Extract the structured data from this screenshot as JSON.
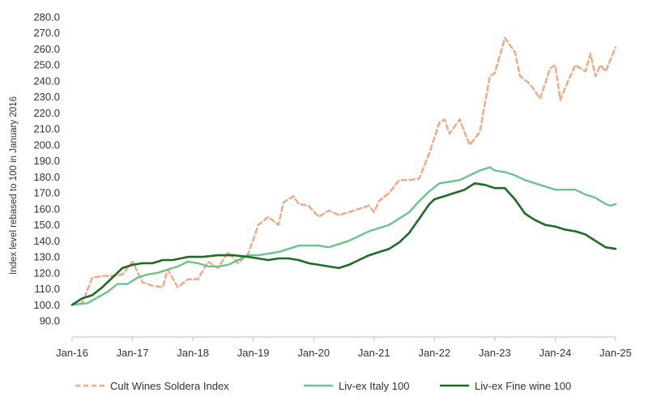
{
  "chart_data": {
    "type": "line",
    "ylabel": "Index level rebased to 100 in January 2016",
    "xlabel": "",
    "ylim": [
      90,
      280
    ],
    "y_ticks": [
      90,
      100,
      110,
      120,
      130,
      140,
      150,
      160,
      170,
      180,
      190,
      200,
      210,
      220,
      230,
      240,
      250,
      260,
      270,
      280
    ],
    "x_range": [
      "2016-01",
      "2025-01"
    ],
    "x_ticks": [
      {
        "date": "2016-01",
        "label": "Jan-16"
      },
      {
        "date": "2017-01",
        "label": "Jan-17"
      },
      {
        "date": "2018-01",
        "label": "Jan-18"
      },
      {
        "date": "2019-01",
        "label": "Jan-19"
      },
      {
        "date": "2020-01",
        "label": "Jan-20"
      },
      {
        "date": "2021-01",
        "label": "Jan-21"
      },
      {
        "date": "2022-01",
        "label": "Jan-22"
      },
      {
        "date": "2023-01",
        "label": "Jan-23"
      },
      {
        "date": "2024-01",
        "label": "Jan-24"
      },
      {
        "date": "2025-01",
        "label": "Jan-25"
      }
    ],
    "grid": false,
    "legend_position": "bottom",
    "series": [
      {
        "name": "Cult Wines Soldera Index",
        "color": "#f4a582",
        "dash": "dashed",
        "points": [
          [
            "2016-01",
            100
          ],
          [
            "2016-03",
            101
          ],
          [
            "2016-05",
            117
          ],
          [
            "2016-07",
            118
          ],
          [
            "2016-09",
            118
          ],
          [
            "2016-11",
            119
          ],
          [
            "2017-01",
            127
          ],
          [
            "2017-03",
            114
          ],
          [
            "2017-05",
            112
          ],
          [
            "2017-07",
            111
          ],
          [
            "2017-08",
            122
          ],
          [
            "2017-10",
            111
          ],
          [
            "2017-12",
            116
          ],
          [
            "2018-02",
            116
          ],
          [
            "2018-04",
            127
          ],
          [
            "2018-06",
            123
          ],
          [
            "2018-08",
            133
          ],
          [
            "2018-10",
            126
          ],
          [
            "2018-12",
            132
          ],
          [
            "2019-02",
            150
          ],
          [
            "2019-04",
            155
          ],
          [
            "2019-06",
            150
          ],
          [
            "2019-07",
            164
          ],
          [
            "2019-09",
            168
          ],
          [
            "2019-10",
            163
          ],
          [
            "2019-12",
            162
          ],
          [
            "2020-02",
            155
          ],
          [
            "2020-04",
            159
          ],
          [
            "2020-06",
            156
          ],
          [
            "2020-08",
            158
          ],
          [
            "2020-10",
            160
          ],
          [
            "2020-12",
            162
          ],
          [
            "2021-01",
            158
          ],
          [
            "2021-02",
            165
          ],
          [
            "2021-04",
            170
          ],
          [
            "2021-06",
            178
          ],
          [
            "2021-08",
            178
          ],
          [
            "2021-10",
            179
          ],
          [
            "2021-12",
            195
          ],
          [
            "2022-02",
            214
          ],
          [
            "2022-03",
            216
          ],
          [
            "2022-04",
            207
          ],
          [
            "2022-06",
            216
          ],
          [
            "2022-08",
            200
          ],
          [
            "2022-10",
            208
          ],
          [
            "2022-12",
            243
          ],
          [
            "2023-01",
            245
          ],
          [
            "2023-03",
            267
          ],
          [
            "2023-05",
            258
          ],
          [
            "2023-06",
            243
          ],
          [
            "2023-08",
            238
          ],
          [
            "2023-10",
            229
          ],
          [
            "2023-12",
            248
          ],
          [
            "2024-01",
            250
          ],
          [
            "2024-02",
            228
          ],
          [
            "2024-03",
            236
          ],
          [
            "2024-05",
            250
          ],
          [
            "2024-07",
            246
          ],
          [
            "2024-08",
            257
          ],
          [
            "2024-09",
            243
          ],
          [
            "2024-10",
            250
          ],
          [
            "2024-11",
            246
          ],
          [
            "2025-01",
            261
          ]
        ]
      },
      {
        "name": "Liv-ex Italy 100",
        "color": "#6cc38c",
        "dash": "solid",
        "points": [
          [
            "2016-01",
            100
          ],
          [
            "2016-04",
            101
          ],
          [
            "2016-08",
            108
          ],
          [
            "2016-10",
            113
          ],
          [
            "2016-12",
            113
          ],
          [
            "2017-02",
            117
          ],
          [
            "2017-04",
            119
          ],
          [
            "2017-06",
            120
          ],
          [
            "2017-08",
            122
          ],
          [
            "2017-10",
            124
          ],
          [
            "2017-12",
            127
          ],
          [
            "2018-02",
            126
          ],
          [
            "2018-04",
            124
          ],
          [
            "2018-06",
            124
          ],
          [
            "2018-08",
            125
          ],
          [
            "2018-10",
            128
          ],
          [
            "2018-12",
            131
          ],
          [
            "2019-02",
            131
          ],
          [
            "2019-04",
            132
          ],
          [
            "2019-06",
            133
          ],
          [
            "2019-08",
            135
          ],
          [
            "2019-10",
            137
          ],
          [
            "2019-12",
            137
          ],
          [
            "2020-02",
            137
          ],
          [
            "2020-04",
            136
          ],
          [
            "2020-06",
            138
          ],
          [
            "2020-08",
            140
          ],
          [
            "2020-10",
            143
          ],
          [
            "2020-12",
            146
          ],
          [
            "2021-02",
            148
          ],
          [
            "2021-04",
            150
          ],
          [
            "2021-06",
            154
          ],
          [
            "2021-08",
            158
          ],
          [
            "2021-10",
            165
          ],
          [
            "2021-12",
            171
          ],
          [
            "2022-02",
            176
          ],
          [
            "2022-04",
            177
          ],
          [
            "2022-06",
            178
          ],
          [
            "2022-08",
            181
          ],
          [
            "2022-10",
            184
          ],
          [
            "2022-12",
            186
          ],
          [
            "2023-01",
            184
          ],
          [
            "2023-03",
            183
          ],
          [
            "2023-05",
            181
          ],
          [
            "2023-07",
            178
          ],
          [
            "2023-09",
            176
          ],
          [
            "2023-11",
            174
          ],
          [
            "2024-01",
            172
          ],
          [
            "2024-03",
            172
          ],
          [
            "2024-05",
            172
          ],
          [
            "2024-07",
            169
          ],
          [
            "2024-09",
            167
          ],
          [
            "2024-11",
            163
          ],
          [
            "2024-12",
            162
          ],
          [
            "2025-01",
            163
          ]
        ]
      },
      {
        "name": "Liv-ex Fine wine 100",
        "color": "#1e6b24",
        "dash": "solid",
        "points": [
          [
            "2016-01",
            100
          ],
          [
            "2016-03",
            104
          ],
          [
            "2016-05",
            106
          ],
          [
            "2016-07",
            111
          ],
          [
            "2016-09",
            117
          ],
          [
            "2016-11",
            123
          ],
          [
            "2017-01",
            125
          ],
          [
            "2017-03",
            126
          ],
          [
            "2017-05",
            126
          ],
          [
            "2017-07",
            128
          ],
          [
            "2017-09",
            128
          ],
          [
            "2017-12",
            130
          ],
          [
            "2018-03",
            130
          ],
          [
            "2018-06",
            131
          ],
          [
            "2018-09",
            131
          ],
          [
            "2018-12",
            130
          ],
          [
            "2019-02",
            129
          ],
          [
            "2019-04",
            128
          ],
          [
            "2019-06",
            129
          ],
          [
            "2019-08",
            129
          ],
          [
            "2019-10",
            128
          ],
          [
            "2019-12",
            126
          ],
          [
            "2020-02",
            125
          ],
          [
            "2020-04",
            124
          ],
          [
            "2020-06",
            123
          ],
          [
            "2020-08",
            125
          ],
          [
            "2020-10",
            128
          ],
          [
            "2020-12",
            131
          ],
          [
            "2021-02",
            133
          ],
          [
            "2021-04",
            135
          ],
          [
            "2021-06",
            139
          ],
          [
            "2021-08",
            145
          ],
          [
            "2021-10",
            154
          ],
          [
            "2021-12",
            163
          ],
          [
            "2022-01",
            166
          ],
          [
            "2022-03",
            168
          ],
          [
            "2022-05",
            170
          ],
          [
            "2022-07",
            172
          ],
          [
            "2022-09",
            176
          ],
          [
            "2022-11",
            175
          ],
          [
            "2023-01",
            173
          ],
          [
            "2023-03",
            173
          ],
          [
            "2023-05",
            166
          ],
          [
            "2023-07",
            157
          ],
          [
            "2023-09",
            153
          ],
          [
            "2023-11",
            150
          ],
          [
            "2024-01",
            149
          ],
          [
            "2024-03",
            147
          ],
          [
            "2024-05",
            146
          ],
          [
            "2024-07",
            144
          ],
          [
            "2024-09",
            140
          ],
          [
            "2024-11",
            136
          ],
          [
            "2025-01",
            135
          ]
        ]
      }
    ]
  }
}
